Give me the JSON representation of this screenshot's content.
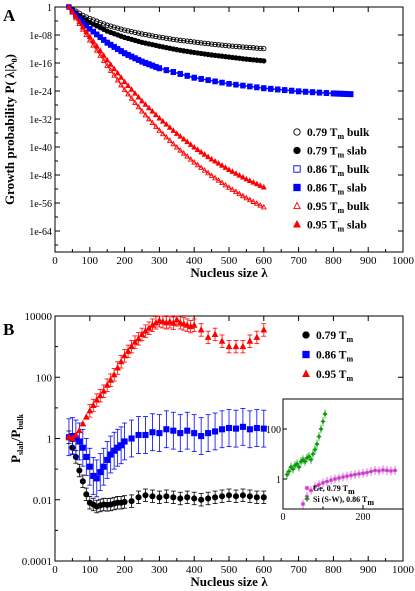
{
  "chart_data": [
    {
      "panel_label": "A",
      "type": "scatter",
      "xlabel": "Nucleus size λ",
      "ylabel_main": "Growth probability P( λ|λ",
      "ylabel_sub": "0",
      "ylabel_close": ")",
      "xlim": [
        0,
        1000
      ],
      "ylim_exp": [
        -70,
        0
      ],
      "y_scale": "log",
      "x_ticks": [
        "0",
        "100",
        "200",
        "300",
        "400",
        "500",
        "600",
        "700",
        "800",
        "900",
        "1000"
      ],
      "y_ticks": [
        {
          "exp": 0,
          "label": "1"
        },
        {
          "exp": -8,
          "label": "1e-08"
        },
        {
          "exp": -16,
          "label": "1e-16"
        },
        {
          "exp": -24,
          "label": "1e-24"
        },
        {
          "exp": -32,
          "label": "1e-32"
        },
        {
          "exp": -40,
          "label": "1e-40"
        },
        {
          "exp": -48,
          "label": "1e-48"
        },
        {
          "exp": -56,
          "label": "1e-56"
        },
        {
          "exp": -64,
          "label": "1e-64"
        }
      ],
      "legend_position": "lower-right",
      "series": [
        {
          "name": "0.79 T",
          "sub": "m",
          "suffix": " bulk",
          "color": "#000000",
          "marker": "circle",
          "filled": false,
          "x": [
            40,
            60,
            80,
            100,
            150,
            200,
            250,
            300,
            350,
            400,
            450,
            500,
            550,
            600
          ],
          "log10y": [
            0,
            -1.2,
            -2.4,
            -3.3,
            -5.2,
            -6.6,
            -7.7,
            -8.6,
            -9.4,
            -10.0,
            -10.6,
            -11.1,
            -11.5,
            -11.9
          ]
        },
        {
          "name": "0.79 T",
          "sub": "m",
          "suffix": " slab",
          "color": "#000000",
          "marker": "circle",
          "filled": true,
          "x": [
            40,
            60,
            80,
            100,
            150,
            200,
            250,
            300,
            350,
            400,
            450,
            500,
            550,
            600
          ],
          "log10y": [
            0,
            -1.7,
            -3.2,
            -4.4,
            -6.9,
            -8.7,
            -10.1,
            -11.2,
            -12.2,
            -13.0,
            -13.7,
            -14.3,
            -14.9,
            -15.4
          ]
        },
        {
          "name": "0.86 T",
          "sub": "m",
          "suffix": " bulk",
          "color": "#0000ff",
          "marker": "square",
          "filled": false,
          "x": [
            40,
            60,
            80,
            100,
            150,
            200,
            250,
            300,
            400,
            500,
            600,
            700,
            800,
            850
          ],
          "log10y": [
            0,
            -2.2,
            -4.3,
            -6.2,
            -10.1,
            -13.1,
            -15.5,
            -17.4,
            -20.1,
            -21.9,
            -23.1,
            -24.0,
            -24.6,
            -24.8
          ]
        },
        {
          "name": "0.86 T",
          "sub": "m",
          "suffix": " slab",
          "color": "#0000ff",
          "marker": "square",
          "filled": true,
          "x": [
            40,
            60,
            80,
            100,
            150,
            200,
            250,
            300,
            400,
            500,
            600,
            700,
            800,
            850
          ],
          "log10y": [
            0,
            -2.3,
            -4.4,
            -6.3,
            -10.3,
            -13.3,
            -15.7,
            -17.6,
            -20.3,
            -22.0,
            -23.3,
            -24.2,
            -24.8,
            -25.0
          ]
        },
        {
          "name": "0.95 T",
          "sub": "m",
          "suffix": " bulk",
          "color": "#ff0000",
          "marker": "triangle",
          "filled": false,
          "x": [
            40,
            60,
            80,
            100,
            150,
            200,
            250,
            300,
            350,
            400,
            450,
            500,
            550,
            600
          ],
          "log10y": [
            0,
            -3.2,
            -6.4,
            -9.5,
            -16.8,
            -23.7,
            -29.8,
            -35.3,
            -40.1,
            -44.4,
            -48.2,
            -51.6,
            -54.6,
            -57.2
          ]
        },
        {
          "name": "0.95 T",
          "sub": "m",
          "suffix": " slab",
          "color": "#ff0000",
          "marker": "triangle",
          "filled": true,
          "x": [
            40,
            60,
            80,
            100,
            150,
            200,
            250,
            300,
            350,
            400,
            450,
            500,
            550,
            600
          ],
          "log10y": [
            0,
            -2.8,
            -5.7,
            -8.5,
            -15.2,
            -21.4,
            -26.9,
            -31.8,
            -36.2,
            -40.1,
            -43.5,
            -46.5,
            -49.2,
            -51.5
          ]
        }
      ]
    },
    {
      "panel_label": "B",
      "type": "scatter",
      "xlabel": "Nucleus size λ",
      "ylabel_main": "P",
      "ylabel_sub1": "slab",
      "ylabel_mid": "/P",
      "ylabel_sub2": "bulk",
      "xlim": [
        0,
        1000
      ],
      "y_scale": "log",
      "ylim": [
        0.0001,
        10000
      ],
      "x_ticks": [
        "0",
        "100",
        "200",
        "300",
        "400",
        "500",
        "600",
        "700",
        "800",
        "900",
        "1000"
      ],
      "y_ticks": [
        "0.0001",
        "0.01",
        "1",
        "100",
        "10000"
      ],
      "legend_position": "top-right",
      "series": [
        {
          "name": "0.79 T",
          "sub": "m",
          "color": "#000000",
          "marker": "circle",
          "x": [
            40,
            50,
            60,
            70,
            80,
            90,
            100,
            110,
            120,
            130,
            140,
            150,
            160,
            170,
            180,
            190,
            200,
            220,
            240,
            260,
            280,
            300,
            320,
            340,
            360,
            380,
            400,
            420,
            440,
            460,
            480,
            500,
            520,
            540,
            560,
            580,
            600
          ],
          "y": [
            1.1,
            0.5,
            0.25,
            0.09,
            0.04,
            0.015,
            0.008,
            0.007,
            0.006,
            0.0065,
            0.007,
            0.0068,
            0.007,
            0.0075,
            0.008,
            0.008,
            0.0085,
            0.009,
            0.012,
            0.014,
            0.013,
            0.012,
            0.013,
            0.012,
            0.011,
            0.012,
            0.011,
            0.01,
            0.011,
            0.012,
            0.013,
            0.014,
            0.013,
            0.014,
            0.013,
            0.012,
            0.012
          ],
          "err_factor": 1.6
        },
        {
          "name": "0.86 T",
          "sub": "m",
          "color": "#0000ff",
          "marker": "square",
          "x": [
            40,
            50,
            60,
            70,
            80,
            90,
            100,
            110,
            120,
            130,
            140,
            150,
            160,
            170,
            180,
            190,
            200,
            220,
            240,
            260,
            280,
            300,
            320,
            340,
            360,
            380,
            400,
            420,
            440,
            460,
            480,
            500,
            520,
            540,
            560,
            580,
            600
          ],
          "y": [
            1.1,
            1.2,
            1.0,
            0.8,
            0.5,
            0.25,
            0.12,
            0.06,
            0.05,
            0.08,
            0.12,
            0.2,
            0.3,
            0.4,
            0.5,
            0.6,
            0.8,
            1.0,
            1.3,
            1.3,
            1.6,
            1.5,
            2.0,
            1.8,
            1.5,
            1.8,
            1.5,
            1.2,
            1.5,
            1.7,
            2.0,
            2.2,
            2.1,
            2.4,
            2.0,
            2.2,
            2.1
          ],
          "err_factor": 4.0
        },
        {
          "name": "0.95 T",
          "sub": "m",
          "color": "#ff0000",
          "marker": "triangle",
          "x": [
            40,
            50,
            60,
            70,
            80,
            90,
            100,
            110,
            120,
            130,
            140,
            150,
            160,
            170,
            180,
            190,
            200,
            210,
            220,
            230,
            240,
            250,
            260,
            270,
            280,
            290,
            300,
            310,
            320,
            330,
            340,
            350,
            360,
            370,
            380,
            390,
            400,
            420,
            440,
            460,
            480,
            500,
            520,
            540,
            560,
            580,
            600
          ],
          "y": [
            1.1,
            1.0,
            1.3,
            1.8,
            3,
            5,
            8,
            12,
            18,
            25,
            35,
            55,
            80,
            120,
            200,
            320,
            500,
            700,
            1000,
            1400,
            1800,
            2500,
            3200,
            4000,
            5000,
            6000,
            7000,
            6500,
            6000,
            6500,
            5800,
            7500,
            6000,
            5500,
            5000,
            4500,
            5000,
            3500,
            2000,
            2500,
            1500,
            1000,
            1000,
            1000,
            1500,
            2000,
            3500
          ],
          "err_factor": 1.6
        }
      ],
      "inset": {
        "type": "scatter",
        "xlim": [
          0,
          300
        ],
        "y_scale": "log",
        "x_ticks": [
          "0",
          "200"
        ],
        "y_ticks": [
          "1",
          "100"
        ],
        "series": [
          {
            "name": "Ge, 0.79 T",
            "sub": "m",
            "color": "#cc33cc",
            "marker": "star",
            "x": [
              50,
              60,
              70,
              80,
              90,
              100,
              110,
              120,
              130,
              140,
              150,
              160,
              170,
              180,
              190,
              200,
              210,
              220,
              230,
              240,
              250,
              260,
              270,
              280
            ],
            "y": [
              0.1,
              0.2,
              0.35,
              0.5,
              0.6,
              0.7,
              0.8,
              0.9,
              1.0,
              1.1,
              1.2,
              1.3,
              1.4,
              1.5,
              1.6,
              1.7,
              1.8,
              2.0,
              2.2,
              2.1,
              2.3,
              2.2,
              2.1,
              2.2
            ]
          },
          {
            "name": "Si (S-W), 0.86 T",
            "sub": "m",
            "color": "#009900",
            "marker": "cross",
            "x": [
              10,
              15,
              20,
              25,
              30,
              35,
              40,
              45,
              50,
              55,
              60,
              65,
              70,
              75,
              80,
              85,
              90,
              95,
              100,
              105
            ],
            "y": [
              1.5,
              2.0,
              3.0,
              2.5,
              3.5,
              4.0,
              3.0,
              5.0,
              6.0,
              5.0,
              7.0,
              8.0,
              6.0,
              10,
              15,
              25,
              50,
              100,
              200,
              400
            ]
          }
        ]
      }
    }
  ]
}
